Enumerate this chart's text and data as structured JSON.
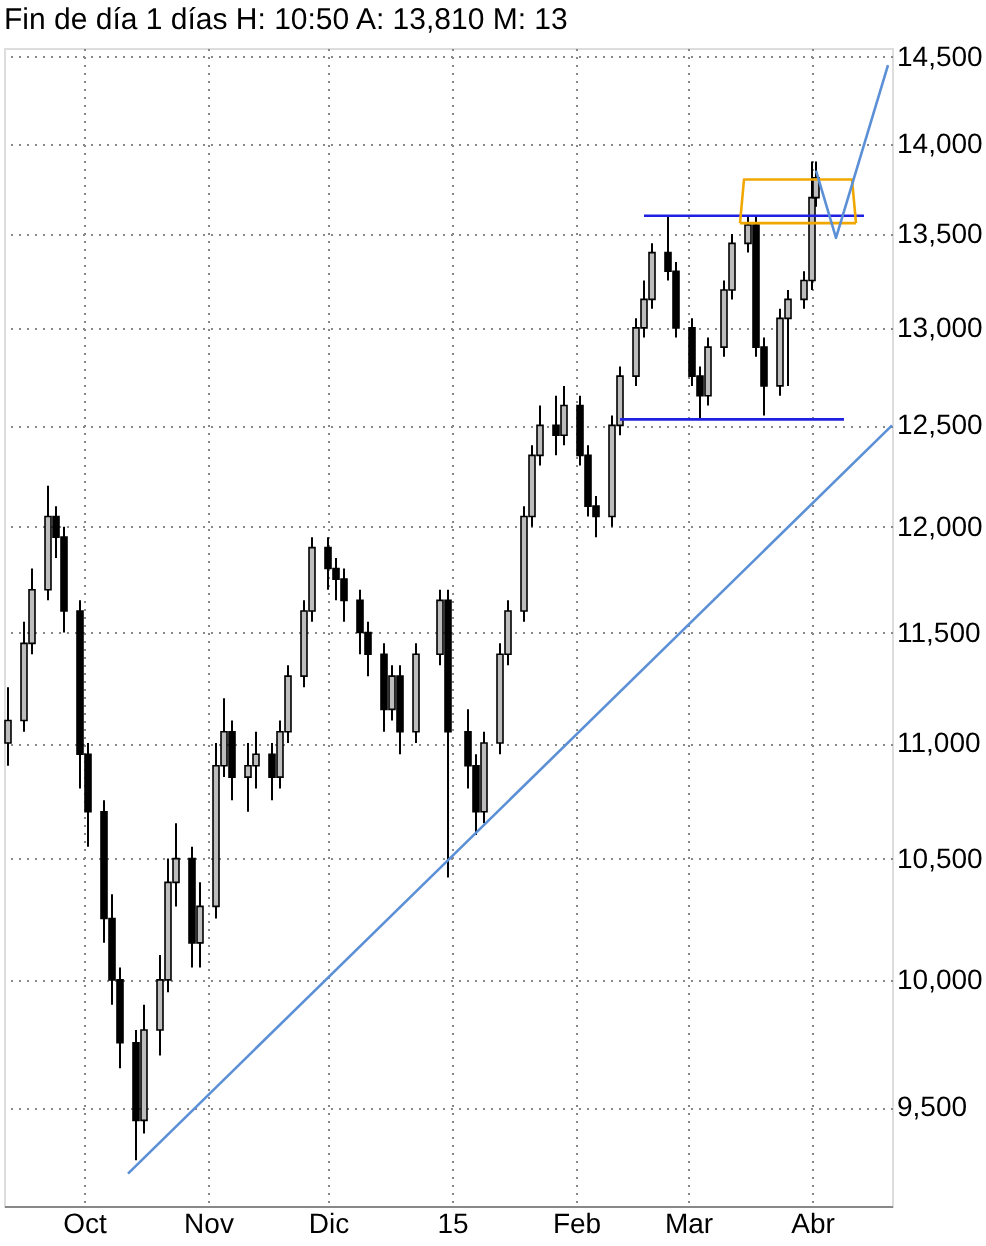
{
  "chart_data": {
    "type": "candlestick",
    "title": "Fin de día 1 días H: 10:50 A: 13,810 M: 13",
    "x": [
      "2014-09-12",
      "2014-09-16",
      "2014-09-18",
      "2014-09-22",
      "2014-09-24",
      "2014-09-26",
      "2014-09-30",
      "2014-10-02",
      "2014-10-06",
      "2014-10-08",
      "2014-10-10",
      "2014-10-14",
      "2014-10-16",
      "2014-10-20",
      "2014-10-22",
      "2014-10-24",
      "2014-10-28",
      "2014-10-30",
      "2014-11-03",
      "2014-11-05",
      "2014-11-07",
      "2014-11-11",
      "2014-11-13",
      "2014-11-17",
      "2014-11-19",
      "2014-11-21",
      "2014-11-25",
      "2014-11-27",
      "2014-12-01",
      "2014-12-03",
      "2014-12-05",
      "2014-12-09",
      "2014-12-11",
      "2014-12-15",
      "2014-12-17",
      "2014-12-19",
      "2014-12-23",
      "2014-12-29",
      "2014-12-31",
      "2015-01-05",
      "2015-01-07",
      "2015-01-09",
      "2015-01-13",
      "2015-01-15",
      "2015-01-19",
      "2015-01-21",
      "2015-01-23",
      "2015-01-27",
      "2015-01-29",
      "2015-02-02",
      "2015-02-04",
      "2015-02-06",
      "2015-02-10",
      "2015-02-12",
      "2015-02-16",
      "2015-02-18",
      "2015-02-20",
      "2015-02-24",
      "2015-02-26",
      "2015-03-02",
      "2015-03-04",
      "2015-03-06",
      "2015-03-10",
      "2015-03-12",
      "2015-03-16",
      "2015-03-18",
      "2015-03-20",
      "2015-03-24",
      "2015-03-26",
      "2015-03-30",
      "2015-04-01",
      "2015-04-02"
    ],
    "ohlc": [
      [
        11000,
        11250,
        10900,
        11100
      ],
      [
        11100,
        11550,
        11050,
        11450
      ],
      [
        11450,
        11800,
        11400,
        11700
      ],
      [
        11700,
        12200,
        11650,
        12050
      ],
      [
        12050,
        12100,
        11850,
        11950
      ],
      [
        11950,
        12000,
        11500,
        11600
      ],
      [
        11600,
        11650,
        10800,
        10950
      ],
      [
        10950,
        11000,
        10550,
        10700
      ],
      [
        10700,
        10750,
        10150,
        10250
      ],
      [
        10250,
        10350,
        9900,
        10000
      ],
      [
        10000,
        10050,
        9650,
        9750
      ],
      [
        9750,
        9800,
        9300,
        9450
      ],
      [
        9450,
        9900,
        9400,
        9800
      ],
      [
        9800,
        10100,
        9700,
        10000
      ],
      [
        10000,
        10500,
        9950,
        10400
      ],
      [
        10400,
        10650,
        10300,
        10500
      ],
      [
        10500,
        10550,
        10050,
        10150
      ],
      [
        10150,
        10400,
        10050,
        10300
      ],
      [
        10300,
        11000,
        10250,
        10900
      ],
      [
        10900,
        11200,
        10850,
        11050
      ],
      [
        11050,
        11100,
        10750,
        10850
      ],
      [
        10850,
        11000,
        10700,
        10900
      ],
      [
        10900,
        11050,
        10800,
        10950
      ],
      [
        10950,
        11000,
        10750,
        10850
      ],
      [
        10850,
        11100,
        10800,
        11050
      ],
      [
        11050,
        11350,
        11000,
        11300
      ],
      [
        11300,
        11650,
        11250,
        11600
      ],
      [
        11600,
        11950,
        11550,
        11900
      ],
      [
        11900,
        11950,
        11700,
        11800
      ],
      [
        11800,
        11850,
        11650,
        11750
      ],
      [
        11750,
        11800,
        11550,
        11650
      ],
      [
        11650,
        11700,
        11400,
        11500
      ],
      [
        11500,
        11550,
        11300,
        11400
      ],
      [
        11400,
        11450,
        11050,
        11150
      ],
      [
        11150,
        11350,
        11100,
        11300
      ],
      [
        11300,
        11350,
        10950,
        11050
      ],
      [
        11050,
        11450,
        11000,
        11400
      ],
      [
        11400,
        11700,
        11350,
        11650
      ],
      [
        11650,
        11700,
        10420,
        11050
      ],
      [
        11050,
        11150,
        10800,
        10900
      ],
      [
        10900,
        10950,
        10600,
        10700
      ],
      [
        10700,
        11050,
        10650,
        11000
      ],
      [
        11000,
        11450,
        10950,
        11400
      ],
      [
        11400,
        11650,
        11350,
        11600
      ],
      [
        11600,
        12100,
        11550,
        12050
      ],
      [
        12050,
        12400,
        12000,
        12350
      ],
      [
        12350,
        12600,
        12300,
        12500
      ],
      [
        12500,
        12650,
        12350,
        12450
      ],
      [
        12450,
        12700,
        12400,
        12600
      ],
      [
        12600,
        12650,
        12300,
        12350
      ],
      [
        12350,
        12400,
        12050,
        12100
      ],
      [
        12100,
        12150,
        11950,
        12050
      ],
      [
        12050,
        12550,
        12000,
        12500
      ],
      [
        12500,
        12800,
        12450,
        12750
      ],
      [
        12750,
        13050,
        12700,
        13000
      ],
      [
        13000,
        13250,
        12950,
        13150
      ],
      [
        13150,
        13450,
        13100,
        13400
      ],
      [
        13400,
        13600,
        13250,
        13300
      ],
      [
        13300,
        13350,
        12950,
        13000
      ],
      [
        13000,
        13050,
        12700,
        12750
      ],
      [
        12750,
        12800,
        12530,
        12650
      ],
      [
        12650,
        12950,
        12600,
        12900
      ],
      [
        12900,
        13250,
        12850,
        13200
      ],
      [
        13200,
        13500,
        13150,
        13450
      ],
      [
        13450,
        13600,
        13400,
        13550
      ],
      [
        13550,
        13600,
        12850,
        12900
      ],
      [
        12900,
        12950,
        12550,
        12700
      ],
      [
        12700,
        13100,
        12650,
        13050
      ],
      [
        13050,
        13200,
        12700,
        13150
      ],
      [
        13150,
        13300,
        13100,
        13250
      ],
      [
        13250,
        13900,
        13200,
        13700
      ],
      [
        13700,
        13900,
        13650,
        13810
      ]
    ],
    "series": [
      {
        "type": "line",
        "color": "#5b8fd6",
        "x": [
          "2014-10-12",
          "2015-04-21"
        ],
        "values": [
          9250,
          12500
        ]
      },
      {
        "type": "line",
        "color": "#2020e0",
        "x": [
          "2015-02-18",
          "2015-04-14"
        ],
        "values": [
          13600,
          13600
        ]
      },
      {
        "type": "line",
        "color": "#2020e0",
        "x": [
          "2015-02-12",
          "2015-04-09"
        ],
        "values": [
          12530,
          12530
        ]
      },
      {
        "type": "line",
        "color": "#f0a800",
        "x": [
          "2015-03-14",
          "2015-03-15",
          "2015-04-11",
          "2015-04-12"
        ],
        "values": [
          13560,
          13800,
          13800,
          13560
        ]
      },
      {
        "type": "line",
        "color": "#f0a800",
        "x": [
          "2015-03-14",
          "2015-04-12"
        ],
        "values": [
          13560,
          13560
        ]
      },
      {
        "type": "line",
        "color": "#5b8fd6",
        "x": [
          "2015-04-02",
          "2015-04-07",
          "2015-04-20"
        ],
        "values": [
          13850,
          13480,
          14450
        ]
      }
    ],
    "xlim": [
      "2014-09-11",
      "2015-04-21"
    ],
    "xticks": [
      {
        "value": "2014-10-01",
        "label": "Oct"
      },
      {
        "value": "2014-11-01",
        "label": "Nov"
      },
      {
        "value": "2014-12-01",
        "label": "Dic"
      },
      {
        "value": "2015-01-01",
        "label": "15"
      },
      {
        "value": "2015-02-01",
        "label": "Feb"
      },
      {
        "value": "2015-03-01",
        "label": "Mar"
      },
      {
        "value": "2015-04-01",
        "label": "Abr"
      }
    ],
    "ylim": [
      9130,
      14550
    ],
    "yticks": [
      {
        "value": 9500,
        "label": "9,500"
      },
      {
        "value": 10000,
        "label": "10,000"
      },
      {
        "value": 10500,
        "label": "10,500"
      },
      {
        "value": 11000,
        "label": "11,000"
      },
      {
        "value": 11500,
        "label": "11,500"
      },
      {
        "value": 12000,
        "label": "12,000"
      },
      {
        "value": 12500,
        "label": "12,500"
      },
      {
        "value": 13000,
        "label": "13,000"
      },
      {
        "value": 13500,
        "label": "13,500"
      },
      {
        "value": 14000,
        "label": "14,000"
      },
      {
        "value": 14500,
        "label": "14,500"
      }
    ],
    "log": true,
    "grid": true
  }
}
